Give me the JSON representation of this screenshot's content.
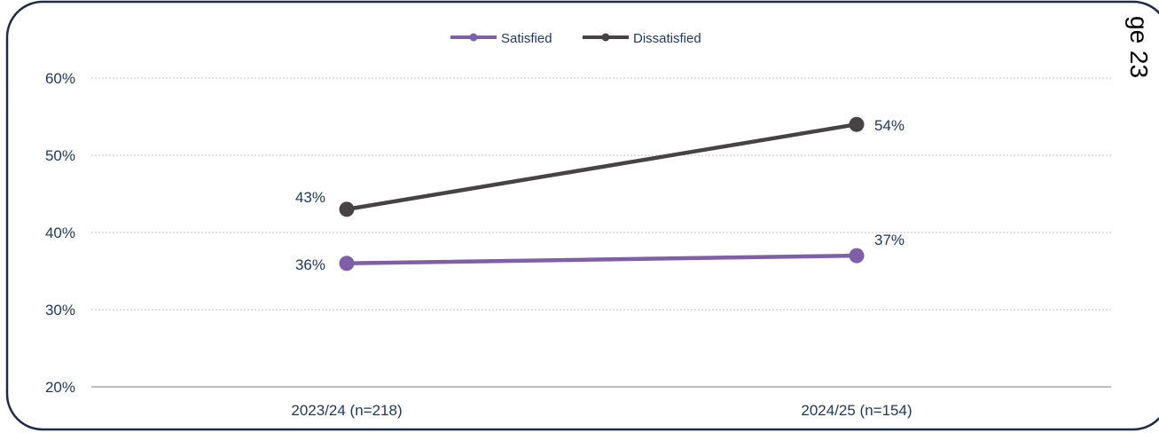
{
  "colors": {
    "frame": "#1f2a4a",
    "text": "#1f3864",
    "grid": "#bfbfbf",
    "axis": "#a6a6a6"
  },
  "page_label": "ge 23",
  "chart_data": {
    "type": "line",
    "title": "",
    "xlabel": "",
    "ylabel": "",
    "categories": [
      "2023/24 (n=218)",
      "2024/25 (n=154)"
    ],
    "y_ticks": [
      "20%",
      "30%",
      "40%",
      "50%",
      "60%"
    ],
    "ylim": [
      20,
      60
    ],
    "grid": true,
    "legend_position": "top-center",
    "series": [
      {
        "name": "Satisfied",
        "color": "#7f5fa8",
        "values": [
          36,
          37
        ],
        "labels": [
          "36%",
          "37%"
        ]
      },
      {
        "name": "Dissatisfied",
        "color": "#474244",
        "values": [
          43,
          54
        ],
        "labels": [
          "43%",
          "54%"
        ]
      }
    ]
  }
}
